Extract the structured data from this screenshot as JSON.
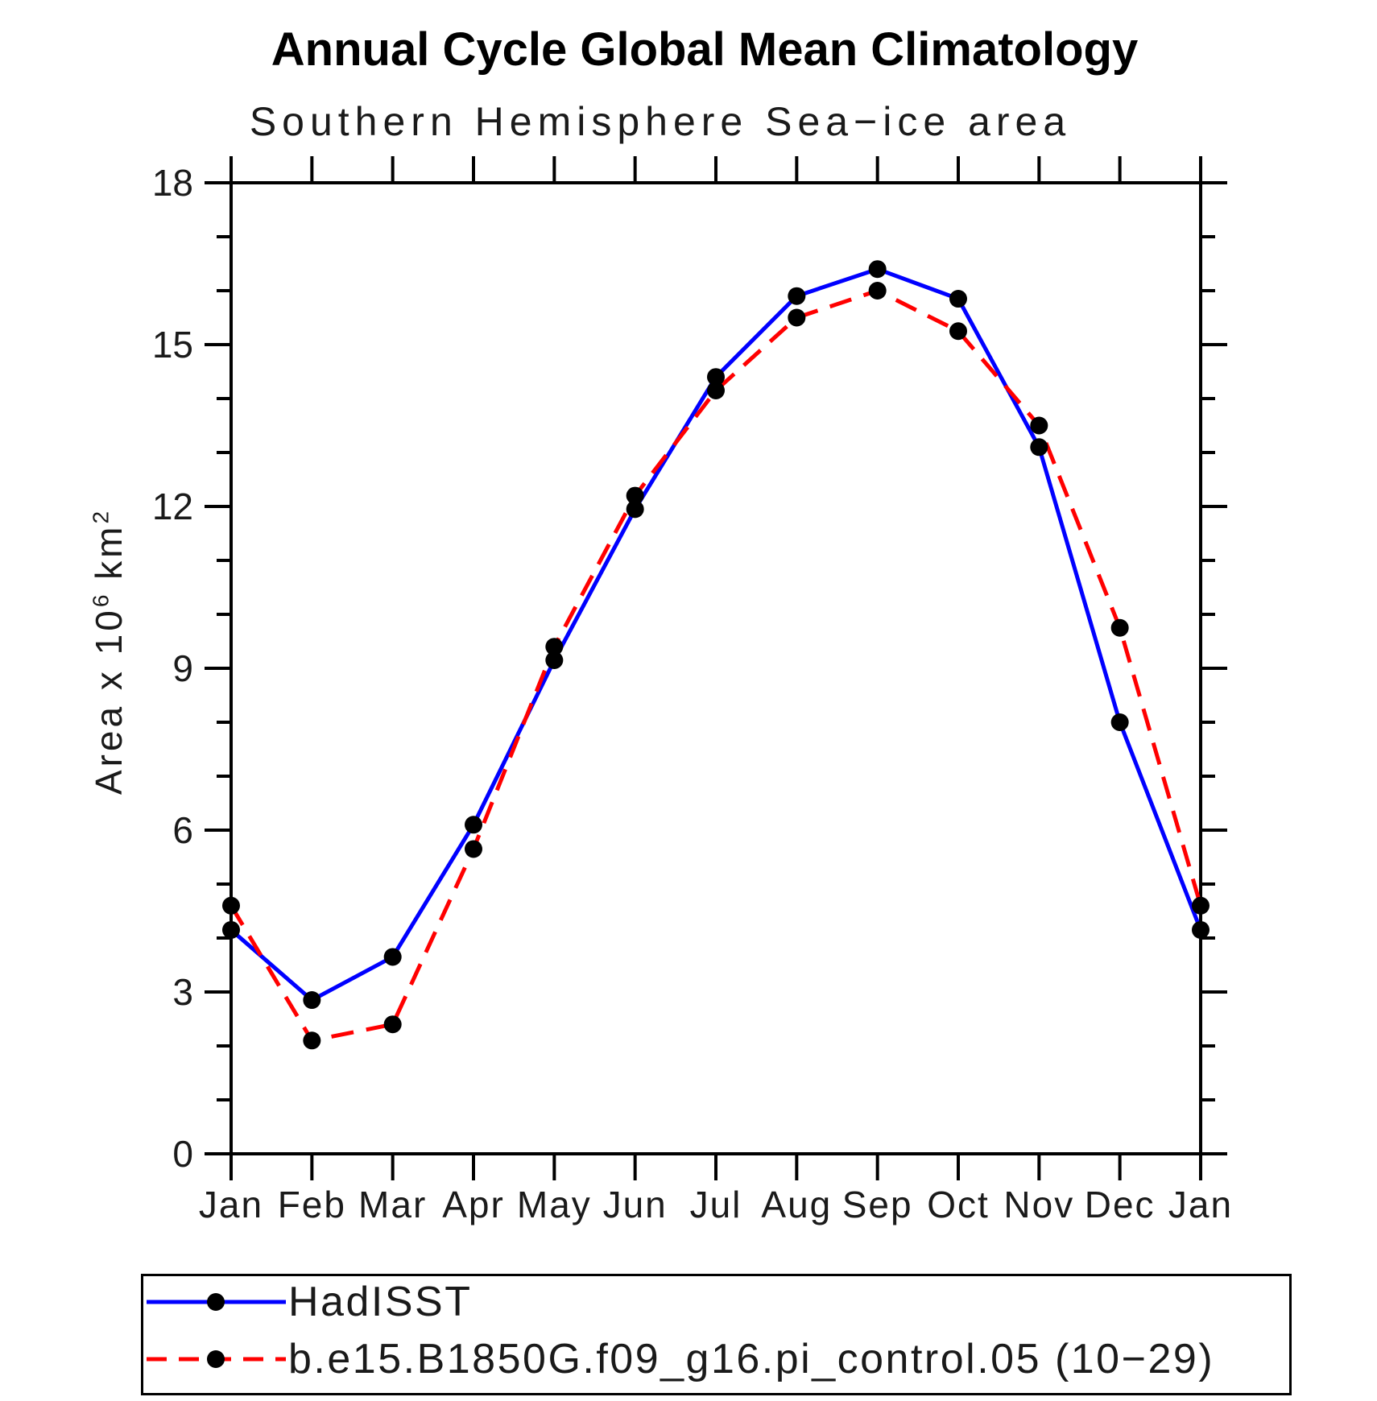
{
  "figure": {
    "background": "#ffffff",
    "frame_color": "#000000",
    "text_color": "#1a1a1a"
  },
  "chart_data": {
    "type": "line",
    "title": "Annual Cycle Global Mean Climatology",
    "subtitle": "Southern Hemisphere Sea−ice area",
    "categories": [
      "Jan",
      "Feb",
      "Mar",
      "Apr",
      "May",
      "Jun",
      "Jul",
      "Aug",
      "Sep",
      "Oct",
      "Nov",
      "Dec",
      "Jan"
    ],
    "series": [
      {
        "name": "HadISST",
        "color": "#0000ff",
        "line_style": "solid",
        "marker": "circle",
        "marker_color": "#000000",
        "values": [
          4.15,
          2.85,
          3.65,
          6.1,
          9.15,
          11.95,
          14.4,
          15.9,
          16.4,
          15.85,
          13.1,
          8.0,
          4.15
        ]
      },
      {
        "name": "b.e15.B1850G.f09_g16.pi_control.05 (10−29)",
        "color": "#ff0000",
        "line_style": "dashed",
        "marker": "circle",
        "marker_color": "#000000",
        "values": [
          4.6,
          2.1,
          2.4,
          5.65,
          9.4,
          12.2,
          14.15,
          15.5,
          16.0,
          15.25,
          13.5,
          9.75,
          4.6
        ]
      }
    ],
    "ylabel": {
      "prefix": "Area x 10",
      "sup1": "6",
      "mid": " km",
      "sup2": "2"
    },
    "ylim": [
      0,
      18
    ],
    "yticks_major": [
      0,
      3,
      6,
      9,
      12,
      15,
      18
    ],
    "ytick_labels": [
      "0",
      "3",
      "6",
      "9",
      "12",
      "15",
      "18"
    ],
    "ytick_minor_step": 1,
    "xtick_minor": false,
    "grid": false,
    "legend_position": "bottom-box"
  }
}
